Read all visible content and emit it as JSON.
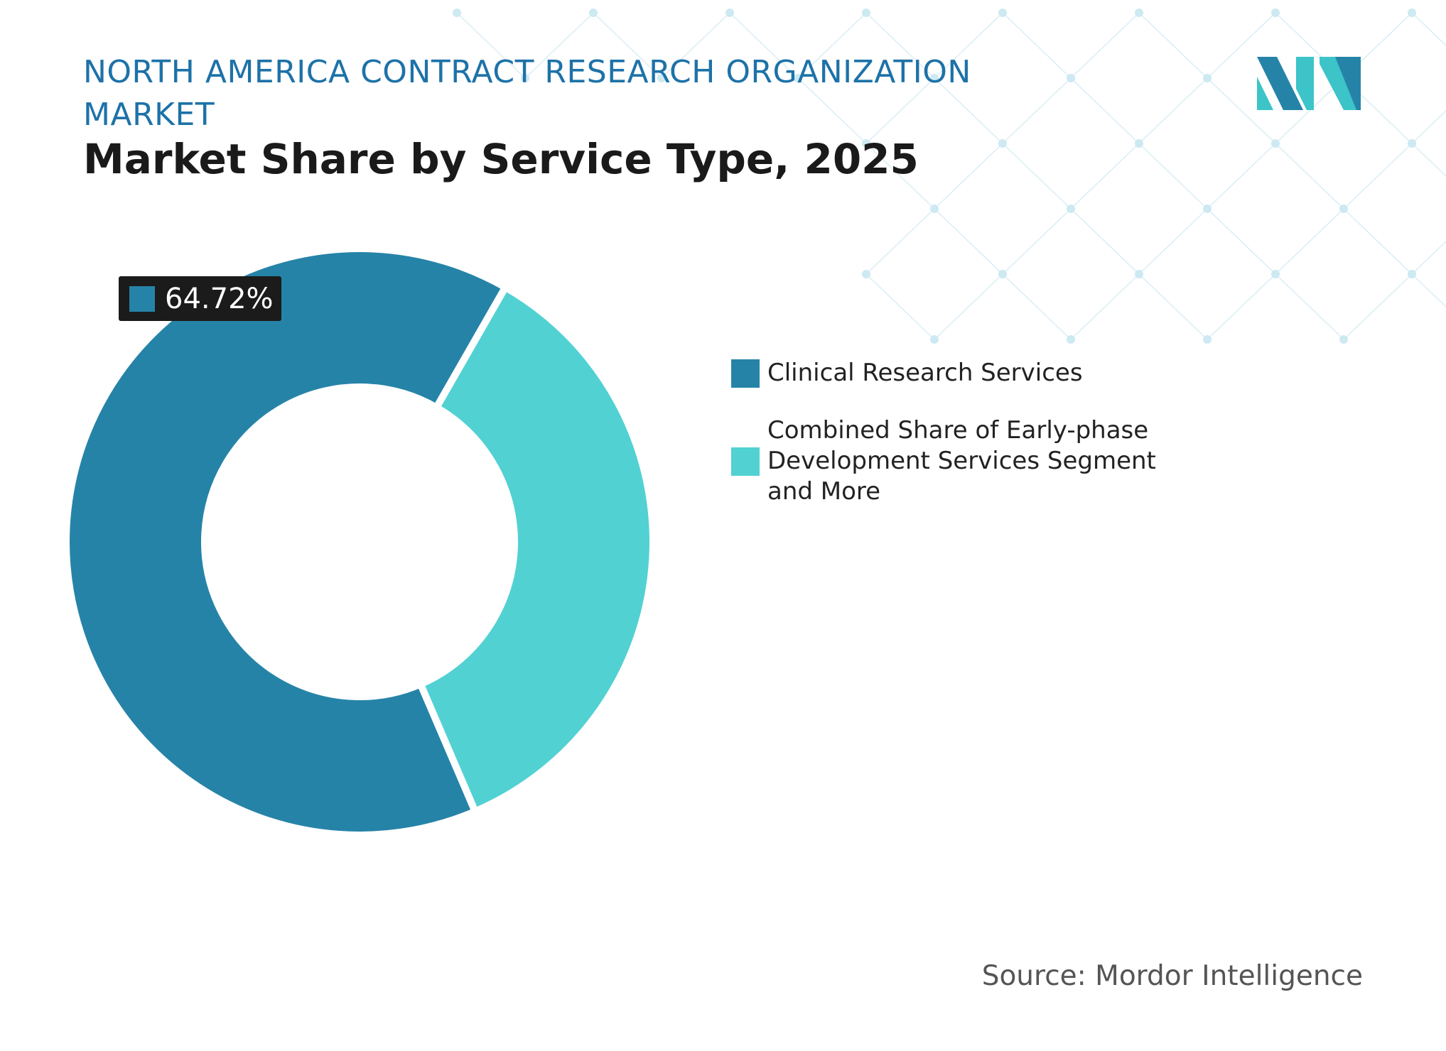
{
  "header": {
    "subtitle": "NORTH AMERICA CONTRACT RESEARCH ORGANIZATION MARKET",
    "title": "Market Share by Service Type, 2025"
  },
  "logo": {
    "name": "mordor-intelligence-logo",
    "colors": [
      "#2683a8",
      "#3cc4c8"
    ]
  },
  "chart_data": {
    "type": "pie",
    "variant": "donut",
    "series": [
      {
        "name": "Clinical Research Services",
        "value": 64.72,
        "color": "#2683a8"
      },
      {
        "name": "Combined Share of Early-phase Development Services Segment and More",
        "value": 35.28,
        "color": "#52d1d3"
      }
    ],
    "data_labels": [
      {
        "series": "Clinical Research Services",
        "text": "64.72%"
      }
    ],
    "legend_placement": "right"
  },
  "footer": {
    "source": "Source: Mordor Intelligence"
  }
}
